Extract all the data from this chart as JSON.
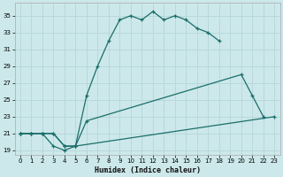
{
  "xlabel": "Humidex (Indice chaleur)",
  "bg_color": "#cce8ea",
  "grid_color": "#b8d8dc",
  "line_color": "#1a6e6a",
  "xlim": [
    -0.5,
    23.5
  ],
  "ylim": [
    18.5,
    36.5
  ],
  "yticks": [
    19,
    21,
    23,
    25,
    27,
    29,
    31,
    33,
    35
  ],
  "xticks": [
    0,
    1,
    2,
    3,
    4,
    5,
    6,
    7,
    8,
    9,
    10,
    11,
    12,
    13,
    14,
    15,
    16,
    17,
    18,
    19,
    20,
    21,
    22,
    23
  ],
  "line1_x": [
    0,
    1,
    2,
    3,
    4,
    5,
    6,
    7,
    8,
    9,
    10,
    11,
    12,
    13,
    14,
    15,
    16,
    17,
    18
  ],
  "line1_y": [
    21,
    21,
    21,
    19.5,
    19,
    19.5,
    25.5,
    29,
    32,
    34.5,
    35,
    34.5,
    35.5,
    34.5,
    35,
    34.5,
    33.5,
    33,
    32
  ],
  "line2_x": [
    0,
    1,
    2,
    3,
    4,
    5,
    6,
    20,
    21,
    22
  ],
  "line2_y": [
    21,
    21,
    21,
    21,
    19.5,
    19.5,
    22.5,
    28,
    25.5,
    23
  ],
  "line3_x": [
    0,
    1,
    2,
    3,
    4,
    5,
    23
  ],
  "line3_y": [
    21,
    21,
    21,
    21,
    19.5,
    19.5,
    23
  ]
}
